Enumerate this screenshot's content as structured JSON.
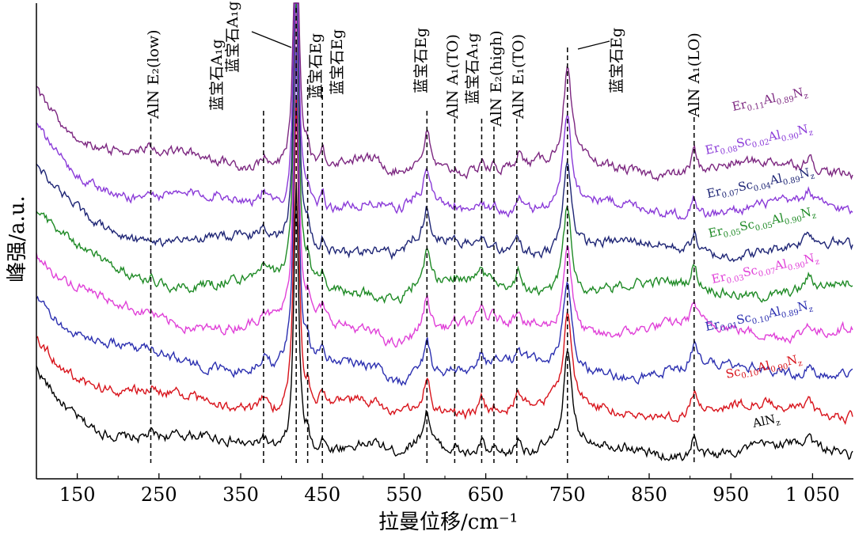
{
  "chart_data": {
    "type": "line",
    "title": "",
    "xlabel": "拉曼位移/cm⁻¹",
    "ylabel": "峰强/a.u.",
    "xlim": [
      100,
      1100
    ],
    "ylim": [
      0,
      10
    ],
    "xticks": [
      150,
      250,
      350,
      450,
      550,
      650,
      750,
      850,
      950,
      1050
    ],
    "xtick_labels": [
      "150",
      "250",
      "350",
      "450",
      "550",
      "650",
      "750",
      "850",
      "950",
      "1 050"
    ],
    "grid": false,
    "legend": "inline labels on the right side of each trace",
    "peak_lines": [
      {
        "x": 240,
        "label": "AlN E₂(low)"
      },
      {
        "x": 378,
        "label": "蓝宝石A₁g"
      },
      {
        "x": 418,
        "label": "蓝宝石A₁g"
      },
      {
        "x": 432,
        "label": "蓝宝石Eg"
      },
      {
        "x": 450,
        "label": "蓝宝石Eg"
      },
      {
        "x": 578,
        "label": "蓝宝石Eg"
      },
      {
        "x": 612,
        "label": "AlN A₁(TO)"
      },
      {
        "x": 645,
        "label": "蓝宝石A₁g"
      },
      {
        "x": 660,
        "label": "AlN E₂(high)"
      },
      {
        "x": 688,
        "label": "AlN E₁(TO)"
      },
      {
        "x": 750,
        "label": "蓝宝石Eg"
      },
      {
        "x": 905,
        "label": "AlN A₁(LO)"
      }
    ],
    "series": [
      {
        "name": "AlN_z",
        "label_parts": [
          [
            "AlN",
            ""
          ],
          [
            "z",
            "sub"
          ]
        ],
        "color": "#000000",
        "offset": 0.0
      },
      {
        "name": "Sc0.10Al0.90N_z",
        "label_parts": [
          [
            "Sc",
            ""
          ],
          [
            "0.10",
            "sub"
          ],
          [
            "Al",
            ""
          ],
          [
            "0.90",
            "sub"
          ],
          [
            "N",
            ""
          ],
          [
            "z",
            "sub"
          ]
        ],
        "color": "#d8131b",
        "offset": 1.0
      },
      {
        "name": "Er0.01Sc0.10Al0.89N_z",
        "label_parts": [
          [
            "Er",
            ""
          ],
          [
            "0.01",
            "sub"
          ],
          [
            "Sc",
            ""
          ],
          [
            "0.10",
            "sub"
          ],
          [
            "Al",
            ""
          ],
          [
            "0.89",
            "sub"
          ],
          [
            "N",
            ""
          ],
          [
            "z",
            "sub"
          ]
        ],
        "color": "#2b2fb0",
        "offset": 2.0
      },
      {
        "name": "Er0.03Sc0.07Al0.90N_z",
        "label_parts": [
          [
            "Er",
            ""
          ],
          [
            "0.03",
            "sub"
          ],
          [
            "Sc",
            ""
          ],
          [
            "0.07",
            "sub"
          ],
          [
            "Al",
            ""
          ],
          [
            "0.90",
            "sub"
          ],
          [
            "N",
            ""
          ],
          [
            "z",
            "sub"
          ]
        ],
        "color": "#e040d8",
        "offset": 3.0
      },
      {
        "name": "Er0.05Sc0.05Al0.90N_z",
        "label_parts": [
          [
            "Er",
            ""
          ],
          [
            "0.05",
            "sub"
          ],
          [
            "Sc",
            ""
          ],
          [
            "0.05",
            "sub"
          ],
          [
            "Al",
            ""
          ],
          [
            "0.90",
            "sub"
          ],
          [
            "N",
            ""
          ],
          [
            "z",
            "sub"
          ]
        ],
        "color": "#1e8a25",
        "offset": 4.0
      },
      {
        "name": "Er0.07Sc0.04Al0.89N_z",
        "label_parts": [
          [
            "Er",
            ""
          ],
          [
            "0.07",
            "sub"
          ],
          [
            "Sc",
            ""
          ],
          [
            "0.04",
            "sub"
          ],
          [
            "Al",
            ""
          ],
          [
            "0.89",
            "sub"
          ],
          [
            "N",
            ""
          ],
          [
            "z",
            "sub"
          ]
        ],
        "color": "#1e2575",
        "offset": 5.0
      },
      {
        "name": "Er0.08Sc0.02Al0.90N_z",
        "label_parts": [
          [
            "Er",
            ""
          ],
          [
            "0.08",
            "sub"
          ],
          [
            "Sc",
            ""
          ],
          [
            "0.02",
            "sub"
          ],
          [
            "Al",
            ""
          ],
          [
            "0.90",
            "sub"
          ],
          [
            "N",
            ""
          ],
          [
            "z",
            "sub"
          ]
        ],
        "color": "#8a3ad8",
        "offset": 6.0
      },
      {
        "name": "Er0.11Al0.89N_z",
        "label_parts": [
          [
            "Er",
            ""
          ],
          [
            "0.11",
            "sub"
          ],
          [
            "Al",
            ""
          ],
          [
            "0.89",
            "sub"
          ],
          [
            "N",
            ""
          ],
          [
            "z",
            "sub"
          ]
        ],
        "color": "#7c2780",
        "offset": 7.0
      }
    ],
    "peaks": [
      {
        "x": 240,
        "h": 0.15,
        "w": 5
      },
      {
        "x": 378,
        "h": 0.45,
        "w": 5
      },
      {
        "x": 418,
        "h": 9.5,
        "w": 3.5
      },
      {
        "x": 432,
        "h": 0.55,
        "w": 3
      },
      {
        "x": 450,
        "h": 0.45,
        "w": 3
      },
      {
        "x": 578,
        "h": 1.25,
        "w": 5
      },
      {
        "x": 612,
        "h": 0.15,
        "w": 4
      },
      {
        "x": 645,
        "h": 0.5,
        "w": 4
      },
      {
        "x": 660,
        "h": 0.2,
        "w": 4
      },
      {
        "x": 690,
        "h": 0.55,
        "w": 4
      },
      {
        "x": 750,
        "h": 3.2,
        "w": 6
      },
      {
        "x": 905,
        "h": 0.75,
        "w": 4
      },
      {
        "x": 1045,
        "h": 0.45,
        "w": 5
      }
    ]
  }
}
